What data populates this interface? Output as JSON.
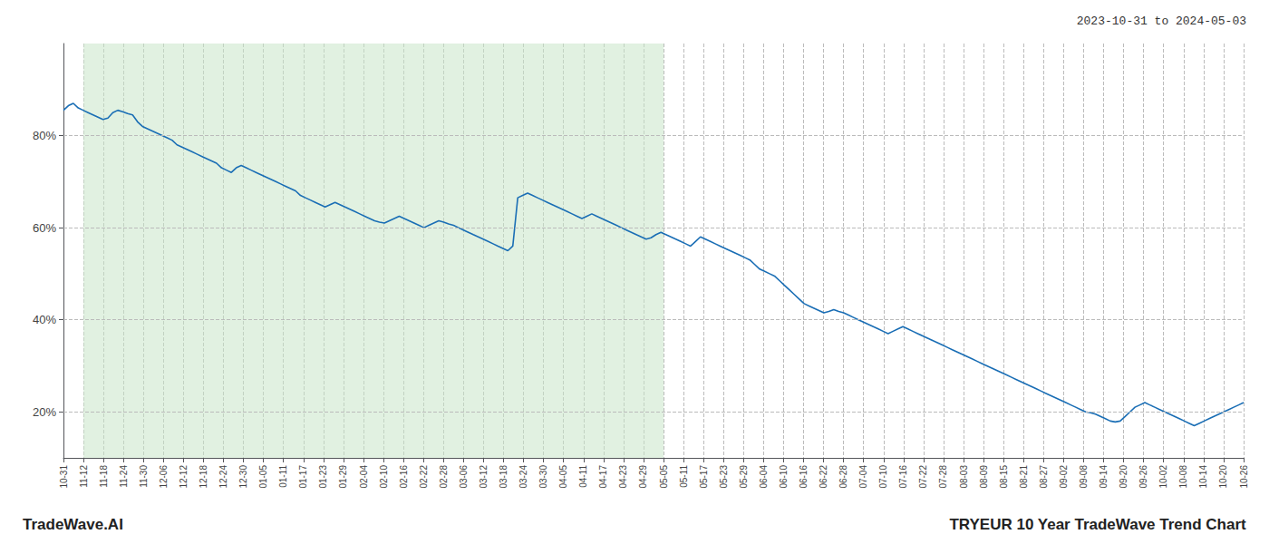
{
  "chart_data": {
    "type": "line",
    "title": "TRYEUR 10 Year TradeWave Trend Chart",
    "subtitle": "2023-10-31 to 2024-05-03",
    "annotations": [
      "TradeWave.AI"
    ],
    "color": "#1a6eb5",
    "grid": true,
    "shaded_region": {
      "from": 1,
      "to": 30,
      "color": "#c8e6c8"
    },
    "xlim": [
      0,
      59
    ],
    "xticks": [
      {
        "value": 0,
        "label": "10-31"
      },
      {
        "value": 1,
        "label": "11-12"
      },
      {
        "value": 2,
        "label": "11-18"
      },
      {
        "value": 3,
        "label": "11-24"
      },
      {
        "value": 4,
        "label": "11-30"
      },
      {
        "value": 5,
        "label": "12-06"
      },
      {
        "value": 6,
        "label": "12-12"
      },
      {
        "value": 7,
        "label": "12-18"
      },
      {
        "value": 8,
        "label": "12-24"
      },
      {
        "value": 9,
        "label": "12-30"
      },
      {
        "value": 10,
        "label": "01-05"
      },
      {
        "value": 11,
        "label": "01-11"
      },
      {
        "value": 12,
        "label": "01-17"
      },
      {
        "value": 13,
        "label": "01-23"
      },
      {
        "value": 14,
        "label": "01-29"
      },
      {
        "value": 15,
        "label": "02-04"
      },
      {
        "value": 16,
        "label": "02-10"
      },
      {
        "value": 17,
        "label": "02-16"
      },
      {
        "value": 18,
        "label": "02-22"
      },
      {
        "value": 19,
        "label": "02-28"
      },
      {
        "value": 20,
        "label": "03-06"
      },
      {
        "value": 21,
        "label": "03-12"
      },
      {
        "value": 22,
        "label": "03-18"
      },
      {
        "value": 23,
        "label": "03-24"
      },
      {
        "value": 24,
        "label": "03-30"
      },
      {
        "value": 25,
        "label": "04-05"
      },
      {
        "value": 26,
        "label": "04-11"
      },
      {
        "value": 27,
        "label": "04-17"
      },
      {
        "value": 28,
        "label": "04-23"
      },
      {
        "value": 29,
        "label": "04-29"
      },
      {
        "value": 30,
        "label": "05-05"
      },
      {
        "value": 31,
        "label": "05-11"
      },
      {
        "value": 32,
        "label": "05-17"
      },
      {
        "value": 33,
        "label": "05-23"
      },
      {
        "value": 34,
        "label": "05-29"
      },
      {
        "value": 35,
        "label": "06-04"
      },
      {
        "value": 36,
        "label": "06-10"
      },
      {
        "value": 37,
        "label": "06-16"
      },
      {
        "value": 38,
        "label": "06-22"
      },
      {
        "value": 39,
        "label": "06-28"
      },
      {
        "value": 40,
        "label": "07-04"
      },
      {
        "value": 41,
        "label": "07-10"
      },
      {
        "value": 42,
        "label": "07-16"
      },
      {
        "value": 43,
        "label": "07-22"
      },
      {
        "value": 44,
        "label": "07-28"
      },
      {
        "value": 45,
        "label": "08-03"
      },
      {
        "value": 46,
        "label": "08-09"
      },
      {
        "value": 47,
        "label": "08-15"
      },
      {
        "value": 48,
        "label": "08-21"
      },
      {
        "value": 49,
        "label": "08-27"
      },
      {
        "value": 50,
        "label": "09-02"
      },
      {
        "value": 51,
        "label": "09-08"
      },
      {
        "value": 52,
        "label": "09-14"
      },
      {
        "value": 53,
        "label": "09-20"
      },
      {
        "value": 54,
        "label": "09-26"
      },
      {
        "value": 55,
        "label": "10-02"
      },
      {
        "value": 56,
        "label": "10-08"
      },
      {
        "value": 57,
        "label": "10-14"
      },
      {
        "value": 58,
        "label": "10-20"
      },
      {
        "value": 59,
        "label": "10-26"
      }
    ],
    "ylim": [
      10,
      100
    ],
    "yticks": [
      {
        "value": 20,
        "label": "20%"
      },
      {
        "value": 40,
        "label": "40%"
      },
      {
        "value": 60,
        "label": "60%"
      },
      {
        "value": 80,
        "label": "80%"
      }
    ],
    "x": [
      0,
      0.2469,
      0.4937,
      0.7406,
      0.9874,
      1.2343,
      1.4812,
      1.728,
      1.9749,
      2.2218,
      2.4686,
      2.7155,
      2.9623,
      3.2092,
      3.4561,
      3.7029,
      3.9498,
      4.1967,
      4.4435,
      4.6904,
      4.9372,
      5.1841,
      5.431,
      5.6778,
      5.9247,
      6.1715,
      6.4184,
      6.6653,
      6.9121,
      7.159,
      7.4059,
      7.6527,
      7.8996,
      8.1464,
      8.3933,
      8.6402,
      8.887,
      9.1339,
      9.3808,
      9.6276,
      9.8745,
      10.1213,
      10.3682,
      10.6151,
      10.8619,
      11.1088,
      11.3556,
      11.6025,
      11.8494,
      12.0962,
      12.3431,
      12.59,
      12.8368,
      13.0837,
      13.3305,
      13.5774,
      13.8243,
      14.0711,
      14.318,
      14.5649,
      14.8117,
      15.0586,
      15.3054,
      15.5523,
      15.7992,
      16.046,
      16.2929,
      16.5397,
      16.7866,
      17.0335,
      17.2803,
      17.5272,
      17.7741,
      18.0209,
      18.2678,
      18.5146,
      18.7615,
      19.0084,
      19.2552,
      19.5021,
      19.749,
      19.9958,
      20.2427,
      20.4895,
      20.7364,
      20.9833,
      21.2301,
      21.477,
      21.7238,
      21.9707,
      22.2176,
      22.4644,
      22.7113,
      22.9582,
      23.205,
      23.4519,
      23.6987,
      23.9456,
      24.1925,
      24.4393,
      24.6862,
      24.9331,
      25.1799,
      25.4268,
      25.6736,
      25.9205,
      26.1674,
      26.4142,
      26.6611,
      26.9079,
      27.1548,
      27.4017,
      27.6485,
      27.8954,
      28.1423,
      28.3891,
      28.636,
      28.8828,
      29.1297,
      29.3766,
      29.6234,
      29.8703,
      30.1172,
      30.364,
      30.6109,
      30.8577,
      31.1046,
      31.3515,
      31.5983,
      31.8452,
      32.0921,
      32.3389,
      32.5858,
      32.8326,
      33.0795,
      33.3264,
      33.5732,
      33.8201,
      34.0669,
      34.3138,
      34.5607,
      34.8075,
      35.0544,
      35.3013,
      35.5481,
      35.795,
      36.0418,
      36.2887,
      36.5356,
      36.7824,
      37.0293,
      37.2762,
      37.523,
      37.7699,
      38.0167,
      38.2636,
      38.5105,
      38.7573,
      39.0042,
      39.251,
      39.4979,
      39.7448,
      39.9916,
      40.2385,
      40.4854,
      40.7322,
      40.9791,
      41.2259,
      41.4728,
      41.7197,
      41.9665,
      42.2134,
      42.4603,
      42.7071,
      42.954,
      43.2008,
      43.4477,
      43.6946,
      43.9414,
      44.1883,
      44.4351,
      44.682,
      44.9289,
      45.1757,
      45.4226,
      45.6695,
      45.9163,
      46.1632,
      46.41,
      46.6569,
      46.9038,
      47.1506,
      47.3975,
      47.6444,
      47.8912,
      48.1381,
      48.3849,
      48.6318,
      48.8787,
      49.1255,
      49.3724,
      49.6192,
      49.8661,
      50.113,
      50.3598,
      50.6067,
      50.8536,
      51.1004,
      51.3473,
      51.5941,
      51.841,
      52.0879,
      52.3347,
      52.5816,
      52.8285,
      53.0753,
      53.3222,
      53.569,
      53.8159,
      54.0628,
      54.3096,
      54.5565,
      54.8033,
      55.0502,
      55.2971,
      55.5439,
      55.7908,
      56.0377,
      56.2845,
      56.5314,
      56.7782,
      57.0251,
      57.272,
      57.5188,
      57.7657,
      58.0126,
      58.2594,
      58.5063,
      58.7531,
      59
    ],
    "values": [
      85.5,
      86.5,
      87.0,
      86.0,
      85.5,
      85.0,
      84.5,
      84.0,
      83.5,
      83.8,
      85.0,
      85.5,
      85.2,
      84.8,
      84.5,
      83.0,
      82.0,
      81.5,
      81.0,
      80.5,
      80.0,
      79.5,
      79.0,
      78.0,
      77.5,
      77.0,
      76.5,
      76.0,
      75.5,
      75.0,
      74.5,
      74.0,
      73.0,
      72.5,
      72.0,
      73.0,
      73.5,
      73.0,
      72.5,
      72.0,
      71.5,
      71.0,
      70.5,
      70.0,
      69.5,
      69.0,
      68.5,
      68.0,
      67.0,
      66.5,
      66.0,
      65.5,
      65.0,
      64.5,
      65.0,
      65.5,
      65.0,
      64.5,
      64.0,
      63.5,
      63.0,
      62.5,
      62.0,
      61.5,
      61.2,
      61.0,
      61.5,
      62.0,
      62.5,
      62.0,
      61.5,
      61.0,
      60.5,
      60.0,
      60.5,
      61.0,
      61.5,
      61.2,
      60.8,
      60.5,
      60.0,
      59.5,
      59.0,
      58.5,
      58.0,
      57.5,
      57.0,
      56.5,
      56.0,
      55.5,
      55.0,
      56.0,
      66.5,
      67.0,
      67.5,
      67.0,
      66.5,
      66.0,
      65.5,
      65.0,
      64.5,
      64.0,
      63.5,
      63.0,
      62.5,
      62.0,
      62.5,
      63.0,
      62.5,
      62.0,
      61.5,
      61.0,
      60.5,
      60.0,
      59.5,
      59.0,
      58.5,
      58.0,
      57.5,
      57.8,
      58.5,
      59.0,
      58.5,
      58.0,
      57.5,
      57.0,
      56.5,
      56.0,
      57.0,
      58.0,
      57.5,
      57.0,
      56.5,
      56.0,
      55.5,
      55.0,
      54.5,
      54.0,
      53.5,
      53.0,
      52.0,
      51.0,
      50.5,
      50.0,
      49.5,
      48.5,
      47.5,
      46.5,
      45.5,
      44.5,
      43.5,
      43.0,
      42.5,
      42.0,
      41.5,
      41.8,
      42.2,
      41.8,
      41.5,
      41.0,
      40.5,
      40.0,
      39.5,
      39.0,
      38.5,
      38.0,
      37.5,
      37.0,
      37.5,
      38.0,
      38.5,
      38.0,
      37.5,
      37.0,
      36.5,
      36.0,
      35.5,
      35.0,
      34.5,
      34.0,
      33.5,
      33.0,
      32.5,
      32.0,
      31.5,
      31.0,
      30.5,
      30.0,
      29.5,
      29.0,
      28.5,
      28.0,
      27.5,
      27.0,
      26.5,
      26.0,
      25.5,
      25.0,
      24.5,
      24.0,
      23.5,
      23.0,
      22.5,
      22.0,
      21.5,
      21.0,
      20.5,
      20.0,
      19.8,
      19.5,
      19.0,
      18.5,
      18.0,
      17.8,
      18.0,
      19.0,
      20.0,
      21.0,
      21.5,
      22.0,
      21.5,
      21.0,
      20.5,
      20.0,
      19.5,
      19.0,
      18.5,
      18.0,
      17.5,
      17.0,
      17.5,
      18.0,
      18.5,
      19.0,
      19.5,
      20.0,
      20.5,
      21.0,
      21.5,
      22.0
    ]
  }
}
